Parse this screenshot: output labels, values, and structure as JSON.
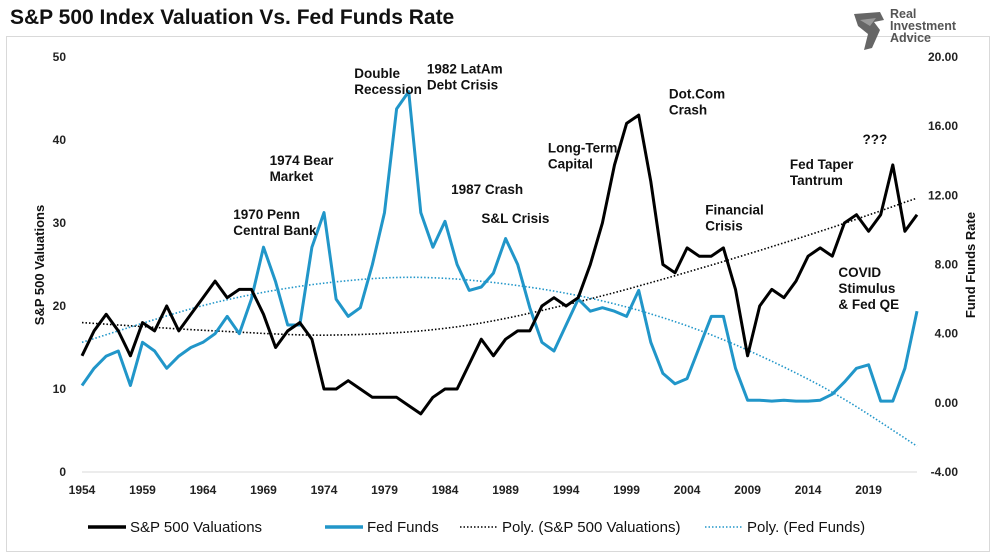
{
  "chart_data": {
    "type": "line",
    "title": "S&P 500 Index Valuation Vs. Fed Funds Rate",
    "ylabel": "S&P 500 Valuations",
    "y2label": "Fund Funds Rate",
    "xlim": [
      1954,
      2023
    ],
    "ylim": [
      0,
      50
    ],
    "y2lim": [
      -4,
      20
    ],
    "x_ticks": [
      "1954",
      "1959",
      "1964",
      "1969",
      "1974",
      "1979",
      "1984",
      "1989",
      "1994",
      "1999",
      "2004",
      "2009",
      "2014",
      "2019"
    ],
    "y_ticks": [
      "0",
      "10",
      "20",
      "30",
      "40",
      "50"
    ],
    "y2_ticks": [
      "-4.00",
      "0.00",
      "4.00",
      "8.00",
      "12.00",
      "16.00",
      "20.00"
    ],
    "years": [
      1954,
      1955,
      1956,
      1957,
      1958,
      1959,
      1960,
      1961,
      1962,
      1963,
      1964,
      1965,
      1966,
      1967,
      1968,
      1969,
      1970,
      1971,
      1972,
      1973,
      1974,
      1975,
      1976,
      1977,
      1978,
      1979,
      1980,
      1981,
      1982,
      1983,
      1984,
      1985,
      1986,
      1987,
      1988,
      1989,
      1990,
      1991,
      1992,
      1993,
      1994,
      1995,
      1996,
      1997,
      1998,
      1999,
      2000,
      2001,
      2002,
      2003,
      2004,
      2005,
      2006,
      2007,
      2008,
      2009,
      2010,
      2011,
      2012,
      2013,
      2014,
      2015,
      2016,
      2017,
      2018,
      2019,
      2020,
      2021,
      2022,
      2023
    ],
    "series": [
      {
        "name": "S&P 500 Valuations",
        "axis": "left",
        "color": "#000000",
        "values": [
          14,
          17,
          19,
          17,
          14,
          18,
          17,
          20,
          17,
          19,
          21,
          23,
          21,
          22,
          22,
          19,
          15,
          17,
          18,
          16,
          10,
          10,
          11,
          10,
          9,
          9,
          9,
          8,
          7,
          9,
          10,
          10,
          13,
          16,
          14,
          16,
          17,
          17,
          20,
          21,
          20,
          21,
          25,
          30,
          37,
          42,
          43,
          35,
          25,
          24,
          27,
          26,
          26,
          27,
          22,
          14,
          20,
          22,
          21,
          23,
          26,
          27,
          26,
          30,
          31,
          29,
          31,
          37,
          29,
          31
        ]
      },
      {
        "name": "Fed Funds",
        "axis": "right",
        "color": "#2196c9",
        "values": [
          1,
          2,
          2.7,
          3,
          1,
          3.5,
          3,
          2,
          2.7,
          3.2,
          3.5,
          4,
          5,
          4,
          6,
          9,
          7,
          4.5,
          4.5,
          9,
          11,
          6,
          5,
          5.5,
          8,
          11,
          17,
          18,
          11,
          9,
          10.5,
          8,
          6.5,
          6.7,
          7.5,
          9.5,
          8,
          5.5,
          3.5,
          3,
          4.5,
          6,
          5.3,
          5.5,
          5.3,
          5,
          6.5,
          3.5,
          1.7,
          1.1,
          1.4,
          3.2,
          5,
          5,
          2,
          0.15,
          0.15,
          0.1,
          0.15,
          0.1,
          0.1,
          0.15,
          0.5,
          1.2,
          2,
          2.2,
          0.1,
          0.1,
          2,
          5.3
        ]
      },
      {
        "name": "Poly. (S&P 500 Valuations)",
        "axis": "left",
        "color": "#000000",
        "style": "dotted",
        "trend_points": [
          [
            1954,
            18
          ],
          [
            1965,
            17
          ],
          [
            1975,
            16.5
          ],
          [
            1985,
            17.5
          ],
          [
            1995,
            20.5
          ],
          [
            2005,
            24.5
          ],
          [
            2015,
            29
          ],
          [
            2023,
            33
          ]
        ]
      },
      {
        "name": "Poly. (Fed Funds)",
        "axis": "right",
        "color": "#2196c9",
        "style": "dotted",
        "trend_points": [
          [
            1954,
            3.5
          ],
          [
            1965,
            5.8
          ],
          [
            1975,
            7
          ],
          [
            1984,
            7.2
          ],
          [
            1995,
            6.2
          ],
          [
            2005,
            4.2
          ],
          [
            2015,
            1
          ],
          [
            2023,
            -2.5
          ]
        ]
      }
    ],
    "legend": {
      "placement": "bottom",
      "entries": [
        "S&P 500 Valuations",
        "Fed Funds",
        "Poly. (S&P 500 Valuations)",
        "Poly. (Fed Funds)"
      ]
    },
    "annotations": [
      {
        "lines": [
          "1970 Penn",
          "Central Bank"
        ],
        "year": 1966.5,
        "value": 30.5
      },
      {
        "lines": [
          "1974 Bear",
          "Market"
        ],
        "year": 1969.5,
        "value": 37
      },
      {
        "lines": [
          "Double",
          "Recession"
        ],
        "year": 1976.5,
        "value": 47.5
      },
      {
        "lines": [
          "1982 LatAm",
          "Debt Crisis"
        ],
        "year": 1982.5,
        "value": 48
      },
      {
        "lines": [
          "1987 Crash"
        ],
        "year": 1984.5,
        "value": 33.5
      },
      {
        "lines": [
          "S&L Crisis"
        ],
        "year": 1987,
        "value": 30
      },
      {
        "lines": [
          "Long-Term",
          "Capital"
        ],
        "year": 1992.5,
        "value": 38.5
      },
      {
        "lines": [
          "Dot.Com",
          "Crash"
        ],
        "year": 2002.5,
        "value": 45
      },
      {
        "lines": [
          "Financial",
          "Crisis"
        ],
        "year": 2005.5,
        "value": 31
      },
      {
        "lines": [
          "Fed Taper",
          "Tantrum"
        ],
        "year": 2012.5,
        "value": 36.5
      },
      {
        "lines": [
          "???"
        ],
        "year": 2018.5,
        "value": 39.5
      },
      {
        "lines": [
          "COVID",
          "Stimulus",
          "& Fed QE"
        ],
        "year": 2016.5,
        "value": 23.5
      }
    ]
  },
  "logo": {
    "lines": [
      "Real",
      "Investment",
      "Advice"
    ]
  }
}
